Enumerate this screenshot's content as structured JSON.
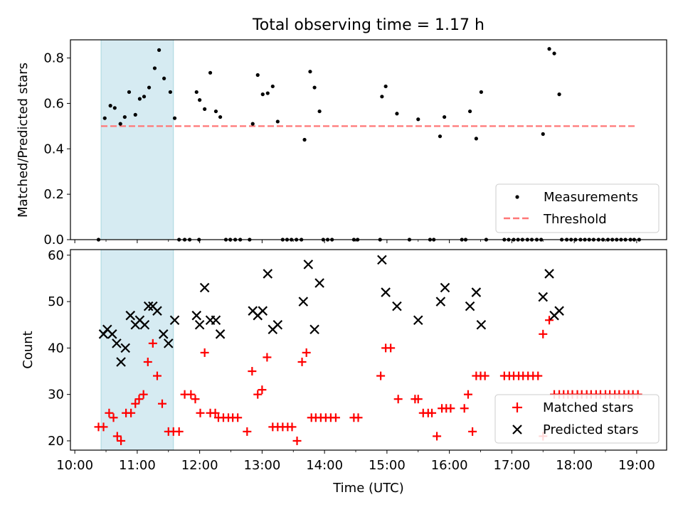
{
  "chart_data": [
    {
      "type": "scatter",
      "title": "Total observing time = 1.17 h",
      "xlabel": "",
      "ylabel": "Matched/Predicted stars",
      "ylim": [
        0,
        0.88
      ],
      "xlim_hours": [
        9.93,
        19.48
      ],
      "x_unit": "hours (UTC)",
      "yticks": [
        0.0,
        0.2,
        0.4,
        0.6,
        0.8
      ],
      "ytick_labels": [
        "0.0",
        "0.2",
        "0.4",
        "0.6",
        "0.8"
      ],
      "shaded_span_hours": [
        10.42,
        11.58
      ],
      "shaded_color": "#add8e6",
      "legend_position": "lower right",
      "threshold": {
        "name": "Threshold",
        "value": 0.5,
        "x_range_hours": [
          10.42,
          19.0
        ],
        "color": "#ff7777"
      },
      "series": [
        {
          "name": "Measurements",
          "color": "#000000",
          "x": [
            10.48,
            10.57,
            10.64,
            10.73,
            10.8,
            10.87,
            10.97,
            11.04,
            11.11,
            11.19,
            11.28,
            11.35,
            11.43,
            11.53,
            11.6,
            11.95,
            12.0,
            12.08,
            12.17,
            12.26,
            12.33,
            12.85,
            12.93,
            13.01,
            13.09,
            13.17,
            13.25,
            13.68,
            13.77,
            13.84,
            13.92,
            14.92,
            14.98,
            15.16,
            15.5,
            15.85,
            15.92,
            16.33,
            16.43,
            16.51,
            17.5,
            17.6,
            17.68,
            17.76
          ],
          "y": [
            0.535,
            0.59,
            0.58,
            0.51,
            0.54,
            0.65,
            0.55,
            0.62,
            0.63,
            0.67,
            0.755,
            0.835,
            0.71,
            0.65,
            0.535,
            0.65,
            0.615,
            0.575,
            0.735,
            0.565,
            0.54,
            0.51,
            0.725,
            0.64,
            0.645,
            0.675,
            0.52,
            0.44,
            0.74,
            0.67,
            0.565,
            0.63,
            0.675,
            0.555,
            0.53,
            0.455,
            0.54,
            0.565,
            0.445,
            0.65,
            0.465,
            0.84,
            0.82,
            0.64
          ]
        },
        {
          "name": "",
          "color": "#000000",
          "x": [
            10.38,
            11.67,
            11.76,
            11.84,
            11.99,
            12.42,
            12.49,
            12.57,
            12.65,
            12.8,
            13.33,
            13.4,
            13.47,
            13.55,
            13.63,
            13.98,
            14.05,
            14.12,
            14.47,
            14.53,
            14.89,
            15.36,
            15.69,
            15.75,
            16.2,
            16.26,
            16.59,
            16.88,
            16.95,
            17.03,
            17.1,
            17.17,
            17.25,
            17.32,
            17.4,
            17.47,
            17.8,
            17.88,
            17.95,
            18.02,
            18.1,
            18.17,
            18.24,
            18.31,
            18.39,
            18.46,
            18.54,
            18.61,
            18.68,
            18.75,
            18.82,
            18.9,
            18.96,
            19.04
          ],
          "y": [
            0,
            0,
            0,
            0,
            0,
            0,
            0,
            0,
            0,
            0,
            0,
            0,
            0,
            0,
            0,
            0,
            0,
            0,
            0,
            0,
            0,
            0,
            0,
            0,
            0,
            0,
            0,
            0,
            0,
            0,
            0,
            0,
            0,
            0,
            0,
            0,
            0,
            0,
            0,
            0,
            0,
            0,
            0,
            0,
            0,
            0,
            0,
            0,
            0,
            0,
            0,
            0,
            0,
            0
          ]
        }
      ]
    },
    {
      "type": "scatter",
      "title": "",
      "xlabel": "Time (UTC)",
      "ylabel": "Count",
      "ylim": [
        18,
        61.2
      ],
      "xlim_hours": [
        9.93,
        19.48
      ],
      "x_unit": "hours (UTC)",
      "xticks_hours": [
        10,
        11,
        12,
        13,
        14,
        15,
        16,
        17,
        18,
        19
      ],
      "xtick_labels": [
        "10:00",
        "11:00",
        "12:00",
        "13:00",
        "14:00",
        "15:00",
        "16:00",
        "17:00",
        "18:00",
        "19:00"
      ],
      "yticks": [
        20,
        30,
        40,
        50,
        60
      ],
      "ytick_labels": [
        "20",
        "30",
        "40",
        "50",
        "60"
      ],
      "shaded_span_hours": [
        10.42,
        11.58
      ],
      "shaded_color": "#add8e6",
      "legend_position": "lower right",
      "series": [
        {
          "name": "Matched stars",
          "color": "#ff0000",
          "marker": "+",
          "x": [
            10.38,
            10.46,
            10.55,
            10.62,
            10.68,
            10.74,
            10.82,
            10.9,
            10.97,
            11.03,
            11.1,
            11.17,
            11.25,
            11.32,
            11.4,
            11.5,
            11.58,
            11.67,
            11.76,
            11.86,
            11.93,
            12.01,
            12.08,
            12.17,
            12.25,
            12.3,
            12.38,
            12.46,
            12.53,
            12.61,
            12.76,
            12.84,
            12.93,
            13.0,
            13.08,
            13.17,
            13.25,
            13.33,
            13.41,
            13.48,
            13.56,
            13.64,
            13.71,
            13.79,
            13.86,
            13.94,
            14.02,
            14.1,
            14.18,
            14.47,
            14.54,
            14.9,
            14.98,
            15.06,
            15.18,
            15.45,
            15.5,
            15.58,
            15.66,
            15.72,
            15.8,
            15.88,
            15.95,
            16.02,
            16.24,
            16.3,
            16.37,
            16.43,
            16.5,
            16.57,
            16.88,
            16.96,
            17.03,
            17.11,
            17.18,
            17.26,
            17.34,
            17.42,
            17.5,
            17.5,
            17.6,
            17.68,
            17.76,
            17.83,
            17.9,
            17.97,
            18.05,
            18.12,
            18.2,
            18.27,
            18.35,
            18.42,
            18.5,
            18.57,
            18.65,
            18.72,
            18.8,
            18.87,
            18.94,
            19.02
          ],
          "y": [
            23,
            23,
            26,
            25,
            21,
            20,
            26,
            26,
            28,
            29,
            30,
            37,
            41,
            34,
            28,
            22,
            22,
            22,
            30,
            30,
            29,
            26,
            39,
            26,
            26,
            25,
            25,
            25,
            25,
            25,
            22,
            35,
            30,
            31,
            38,
            23,
            23,
            23,
            23,
            23,
            20,
            37,
            39,
            25,
            25,
            25,
            25,
            25,
            25,
            25,
            25,
            34,
            40,
            40,
            29,
            29,
            29,
            26,
            26,
            26,
            21,
            27,
            27,
            27,
            27,
            30,
            22,
            34,
            34,
            34,
            34,
            34,
            34,
            34,
            34,
            34,
            34,
            34,
            21,
            43,
            46,
            30,
            30,
            30,
            30,
            30,
            30,
            30,
            30,
            30,
            30,
            30,
            30,
            30,
            30,
            30,
            30,
            30,
            30,
            30
          ]
        },
        {
          "name": "Predicted stars",
          "color": "#000000",
          "marker": "x",
          "x": [
            10.46,
            10.52,
            10.6,
            10.67,
            10.74,
            10.81,
            10.89,
            10.97,
            11.04,
            11.12,
            11.18,
            11.25,
            11.32,
            11.42,
            11.5,
            11.6,
            11.95,
            12.0,
            12.08,
            12.17,
            12.26,
            12.33,
            12.85,
            12.93,
            13.01,
            13.09,
            13.17,
            13.25,
            13.66,
            13.74,
            13.84,
            13.92,
            14.92,
            14.98,
            15.16,
            15.5,
            15.86,
            15.93,
            16.33,
            16.43,
            16.51,
            17.5,
            17.6,
            17.68,
            17.76
          ],
          "y": [
            43,
            44,
            43,
            41,
            37,
            40,
            47,
            45,
            46,
            45,
            49,
            49,
            48,
            43,
            41,
            46,
            47,
            45,
            53,
            46,
            46,
            43,
            48,
            47,
            48,
            56,
            44,
            45,
            50,
            58,
            44,
            54,
            59,
            52,
            49,
            46,
            50,
            53,
            49,
            52,
            45,
            51,
            56,
            47,
            48
          ]
        }
      ]
    }
  ]
}
